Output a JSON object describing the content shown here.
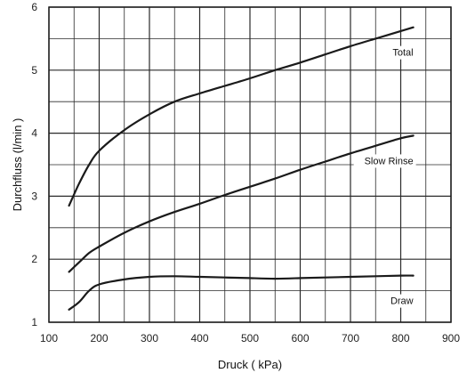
{
  "chart_data": {
    "type": "line",
    "title": "",
    "xlabel": "Druck  ( kPa)",
    "ylabel": "Durchfluss  (l/min )",
    "xlim": [
      100,
      900
    ],
    "ylim": [
      1,
      6
    ],
    "x_ticks": [
      "100",
      "200",
      "300",
      "400",
      "500",
      "600",
      "700",
      "800",
      "900"
    ],
    "y_ticks": [
      "1",
      "2",
      "3",
      "4",
      "5",
      "6"
    ],
    "grid": true,
    "legend": "inline labels",
    "series": [
      {
        "name": "Total",
        "x": [
          140,
          160,
          180,
          200,
          250,
          300,
          350,
          400,
          450,
          500,
          550,
          600,
          650,
          700,
          750,
          800,
          825
        ],
        "y": [
          2.85,
          3.2,
          3.5,
          3.72,
          4.05,
          4.3,
          4.5,
          4.63,
          4.75,
          4.87,
          5.0,
          5.12,
          5.25,
          5.38,
          5.5,
          5.62,
          5.68
        ]
      },
      {
        "name": "Slow Rinse",
        "x": [
          140,
          160,
          180,
          200,
          250,
          300,
          350,
          400,
          450,
          500,
          550,
          600,
          650,
          700,
          750,
          800,
          825
        ],
        "y": [
          1.8,
          1.95,
          2.1,
          2.2,
          2.42,
          2.6,
          2.75,
          2.88,
          3.02,
          3.15,
          3.28,
          3.42,
          3.55,
          3.68,
          3.8,
          3.92,
          3.96
        ]
      },
      {
        "name": "Draw",
        "x": [
          140,
          160,
          180,
          200,
          250,
          300,
          350,
          400,
          450,
          500,
          550,
          600,
          650,
          700,
          750,
          800,
          825
        ],
        "y": [
          1.2,
          1.32,
          1.5,
          1.6,
          1.68,
          1.72,
          1.73,
          1.72,
          1.71,
          1.7,
          1.69,
          1.7,
          1.71,
          1.72,
          1.73,
          1.74,
          1.74
        ]
      }
    ],
    "colors": {
      "line": "#1a1a1a",
      "grid": "#2a2a2a",
      "background": "#ffffff"
    }
  }
}
